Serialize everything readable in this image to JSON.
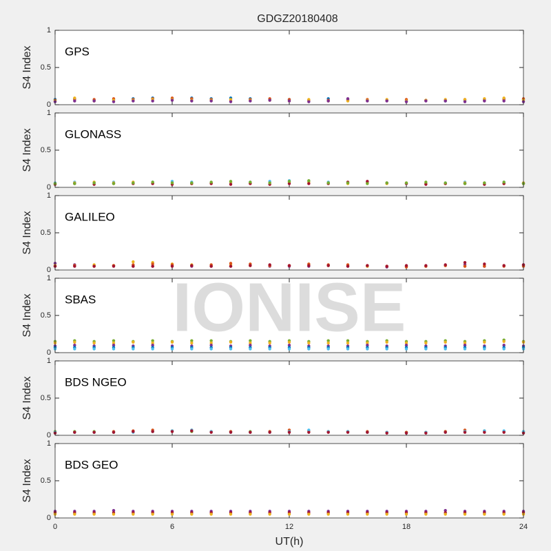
{
  "title": "GDGZ20180408",
  "x_label": "UT(h)",
  "watermark": "IONISE",
  "chart_data": [
    {
      "type": "scatter",
      "title": "GPS",
      "y_label": "S4 Index",
      "xlim": [
        0,
        24
      ],
      "xticks": [
        0,
        6,
        12,
        18,
        24
      ],
      "ylim": [
        0,
        1
      ],
      "yticks": [
        0,
        0.5,
        1
      ],
      "x": [
        0,
        1,
        2,
        3,
        4,
        5,
        6,
        7,
        8,
        9,
        10,
        11,
        12,
        13,
        14,
        15,
        16,
        17,
        18,
        19,
        20,
        21,
        22,
        23,
        24
      ],
      "series": [
        {
          "color": "#0072BD",
          "values": [
            0.07,
            0.08,
            0.06,
            0.07,
            0.08,
            0.09,
            0.08,
            0.09,
            0.08,
            0.09,
            0.08,
            0.07,
            0.07,
            0.06,
            0.08,
            0.07,
            0.06,
            0.06,
            0.05,
            0.06,
            0.05,
            0.06,
            0.07,
            0.08,
            0.07
          ]
        },
        {
          "color": "#D95319",
          "values": [
            0.06,
            0.07,
            0.07,
            0.08,
            0.07,
            0.08,
            0.09,
            0.08,
            0.07,
            0.06,
            0.07,
            0.08,
            0.07,
            0.06,
            0.06,
            0.06,
            0.07,
            0.06,
            0.07,
            0.06,
            0.06,
            0.07,
            0.06,
            0.07,
            0.08
          ]
        },
        {
          "color": "#EDB120",
          "values": [
            0.05,
            0.09,
            0.05,
            0.06,
            0.06,
            0.07,
            0.07,
            0.06,
            0.06,
            0.07,
            0.06,
            0.06,
            0.05,
            0.07,
            0.05,
            0.05,
            0.06,
            0.07,
            0.05,
            0.06,
            0.07,
            0.07,
            0.08,
            0.09,
            0.06
          ]
        },
        {
          "color": "#7E2F8E",
          "values": [
            0.04,
            0.05,
            0.05,
            0.04,
            0.05,
            0.05,
            0.06,
            0.05,
            0.05,
            0.04,
            0.05,
            0.06,
            0.05,
            0.04,
            0.05,
            0.08,
            0.05,
            0.05,
            0.04,
            0.05,
            0.05,
            0.04,
            0.05,
            0.05,
            0.04
          ]
        }
      ]
    },
    {
      "type": "scatter",
      "title": "GLONASS",
      "y_label": "S4 Index",
      "xlim": [
        0,
        24
      ],
      "xticks": [
        0,
        6,
        12,
        18,
        24
      ],
      "ylim": [
        0,
        1
      ],
      "yticks": [
        0,
        0.5,
        1
      ],
      "x": [
        0,
        1,
        2,
        3,
        4,
        5,
        6,
        7,
        8,
        9,
        10,
        11,
        12,
        13,
        14,
        15,
        16,
        17,
        18,
        19,
        20,
        21,
        22,
        23,
        24
      ],
      "series": [
        {
          "color": "#4DBEEE",
          "values": [
            0.06,
            0.07,
            0.06,
            0.07,
            0.06,
            0.07,
            0.08,
            0.07,
            0.06,
            0.06,
            0.07,
            0.08,
            0.09,
            0.08,
            0.07,
            0.06,
            0.07,
            0.06,
            0.05,
            0.05,
            0.06,
            0.07,
            0.06,
            0.07,
            0.06
          ]
        },
        {
          "color": "#EDB120",
          "values": [
            0.05,
            0.06,
            0.07,
            0.06,
            0.07,
            0.06,
            0.06,
            0.05,
            0.06,
            0.07,
            0.06,
            0.06,
            0.07,
            0.07,
            0.06,
            0.05,
            0.06,
            0.05,
            0.06,
            0.05,
            0.05,
            0.06,
            0.06,
            0.05,
            0.06
          ]
        },
        {
          "color": "#A2142F",
          "values": [
            0.04,
            0.05,
            0.04,
            0.05,
            0.05,
            0.05,
            0.04,
            0.05,
            0.05,
            0.04,
            0.05,
            0.04,
            0.05,
            0.05,
            0.05,
            0.07,
            0.08,
            0.06,
            0.05,
            0.04,
            0.05,
            0.05,
            0.04,
            0.05,
            0.05
          ]
        },
        {
          "color": "#77AC30",
          "values": [
            0.05,
            0.05,
            0.06,
            0.05,
            0.06,
            0.07,
            0.06,
            0.06,
            0.07,
            0.08,
            0.07,
            0.06,
            0.08,
            0.09,
            0.06,
            0.06,
            0.05,
            0.06,
            0.06,
            0.07,
            0.06,
            0.05,
            0.06,
            0.07,
            0.05
          ]
        }
      ]
    },
    {
      "type": "scatter",
      "title": "GALILEO",
      "y_label": "S4 Index",
      "xlim": [
        0,
        24
      ],
      "xticks": [
        0,
        6,
        12,
        18,
        24
      ],
      "ylim": [
        0,
        1
      ],
      "yticks": [
        0,
        0.5,
        1
      ],
      "x": [
        0,
        1,
        2,
        3,
        4,
        5,
        6,
        7,
        8,
        9,
        10,
        11,
        12,
        13,
        14,
        15,
        16,
        17,
        18,
        19,
        20,
        21,
        22,
        23,
        24
      ],
      "series": [
        {
          "color": "#7E2F8E",
          "values": [
            0.09,
            0.07,
            0.06,
            0.06,
            0.05,
            0.05,
            0.06,
            0.05,
            0.05,
            0.05,
            0.06,
            0.05,
            0.05,
            0.05,
            0.06,
            0.05,
            0.05,
            0.04,
            0.05,
            0.05,
            0.06,
            0.07,
            0.05,
            0.06,
            0.07
          ]
        },
        {
          "color": "#EDB120",
          "values": [
            0.06,
            0.06,
            0.07,
            0.06,
            0.11,
            0.1,
            0.08,
            0.07,
            0.06,
            0.07,
            0.06,
            0.06,
            0.06,
            0.07,
            0.06,
            0.06,
            0.05,
            0.05,
            0.05,
            0.05,
            0.06,
            0.05,
            0.06,
            0.06,
            0.06
          ]
        },
        {
          "color": "#D95319",
          "values": [
            0.05,
            0.06,
            0.05,
            0.06,
            0.07,
            0.08,
            0.07,
            0.06,
            0.07,
            0.09,
            0.08,
            0.06,
            0.06,
            0.08,
            0.07,
            0.07,
            0.06,
            0.05,
            0.04,
            0.05,
            0.06,
            0.05,
            0.05,
            0.05,
            0.05
          ]
        },
        {
          "color": "#A2142F",
          "values": [
            0.05,
            0.05,
            0.05,
            0.05,
            0.05,
            0.05,
            0.05,
            0.06,
            0.05,
            0.05,
            0.06,
            0.07,
            0.06,
            0.06,
            0.06,
            0.05,
            0.06,
            0.05,
            0.06,
            0.06,
            0.07,
            0.1,
            0.08,
            0.06,
            0.07
          ]
        }
      ]
    },
    {
      "type": "scatter",
      "title": "SBAS",
      "y_label": "S4 Index",
      "xlim": [
        0,
        24
      ],
      "xticks": [
        0,
        6,
        12,
        18,
        24
      ],
      "ylim": [
        0,
        1
      ],
      "yticks": [
        0,
        0.5,
        1
      ],
      "x": [
        0,
        1,
        2,
        3,
        4,
        5,
        6,
        7,
        8,
        9,
        10,
        11,
        12,
        13,
        14,
        15,
        16,
        17,
        18,
        19,
        20,
        21,
        22,
        23,
        24
      ],
      "series": [
        {
          "color": "#77AC30",
          "values": [
            0.15,
            0.16,
            0.15,
            0.16,
            0.15,
            0.16,
            0.15,
            0.16,
            0.16,
            0.15,
            0.16,
            0.15,
            0.16,
            0.15,
            0.16,
            0.16,
            0.15,
            0.16,
            0.15,
            0.15,
            0.16,
            0.15,
            0.16,
            0.17,
            0.15
          ]
        },
        {
          "color": "#EDB120",
          "values": [
            0.13,
            0.14,
            0.13,
            0.13,
            0.14,
            0.13,
            0.14,
            0.13,
            0.13,
            0.14,
            0.13,
            0.13,
            0.14,
            0.13,
            0.13,
            0.13,
            0.13,
            0.14,
            0.13,
            0.13,
            0.14,
            0.13,
            0.14,
            0.15,
            0.14
          ]
        },
        {
          "color": "#7E2F8E",
          "values": [
            0.09,
            0.1,
            0.09,
            0.1,
            0.09,
            0.1,
            0.09,
            0.09,
            0.1,
            0.09,
            0.1,
            0.09,
            0.1,
            0.09,
            0.09,
            0.09,
            0.1,
            0.09,
            0.1,
            0.09,
            0.09,
            0.1,
            0.09,
            0.1,
            0.09
          ]
        },
        {
          "color": "#0072BD",
          "values": [
            0.07,
            0.07,
            0.07,
            0.07,
            0.07,
            0.07,
            0.07,
            0.07,
            0.07,
            0.07,
            0.07,
            0.07,
            0.07,
            0.07,
            0.07,
            0.07,
            0.07,
            0.07,
            0.07,
            0.07,
            0.07,
            0.07,
            0.07,
            0.07,
            0.07
          ]
        },
        {
          "color": "#4DBEEE",
          "values": [
            0.05,
            0.05,
            0.05,
            0.05,
            0.05,
            0.05,
            0.05,
            0.05,
            0.05,
            0.05,
            0.05,
            0.05,
            0.05,
            0.05,
            0.05,
            0.05,
            0.05,
            0.05,
            0.05,
            0.05,
            0.05,
            0.05,
            0.05,
            0.05,
            0.05
          ]
        }
      ]
    },
    {
      "type": "scatter",
      "title": "BDS NGEO",
      "y_label": "S4 Index",
      "xlim": [
        0,
        24
      ],
      "xticks": [
        0,
        6,
        12,
        18,
        24
      ],
      "ylim": [
        0,
        1
      ],
      "yticks": [
        0,
        0.5,
        1
      ],
      "x": [
        0,
        1,
        2,
        3,
        4,
        5,
        6,
        7,
        8,
        9,
        10,
        11,
        12,
        13,
        14,
        15,
        16,
        17,
        18,
        19,
        20,
        21,
        22,
        23,
        24
      ],
      "series": [
        {
          "color": "#77AC30",
          "values": [
            0.05,
            0.05,
            0.05,
            0.04,
            0.05,
            0.05,
            0.06,
            0.05,
            0.05,
            0.05,
            0.05,
            0.05,
            0.05,
            0.06,
            0.05,
            0.05,
            0.04,
            0.04,
            0.04,
            0.04,
            0.05,
            0.05,
            0.06,
            0.05,
            0.05
          ]
        },
        {
          "color": "#D95319",
          "values": [
            0.04,
            0.04,
            0.04,
            0.05,
            0.06,
            0.07,
            0.06,
            0.07,
            0.05,
            0.05,
            0.04,
            0.05,
            0.07,
            0.06,
            0.05,
            0.05,
            0.05,
            0.04,
            0.04,
            0.04,
            0.05,
            0.07,
            0.06,
            0.05,
            0.04
          ]
        },
        {
          "color": "#4DBEEE",
          "values": [
            0.04,
            0.04,
            0.04,
            0.04,
            0.04,
            0.05,
            0.06,
            0.07,
            0.05,
            0.04,
            0.04,
            0.04,
            0.05,
            0.07,
            0.05,
            0.05,
            0.04,
            0.04,
            0.03,
            0.04,
            0.04,
            0.05,
            0.06,
            0.06,
            0.05
          ]
        },
        {
          "color": "#A2142F",
          "values": [
            0.03,
            0.04,
            0.04,
            0.04,
            0.05,
            0.05,
            0.05,
            0.06,
            0.04,
            0.04,
            0.04,
            0.04,
            0.04,
            0.04,
            0.04,
            0.04,
            0.04,
            0.03,
            0.03,
            0.03,
            0.04,
            0.04,
            0.04,
            0.04,
            0.03
          ]
        }
      ]
    },
    {
      "type": "scatter",
      "title": "BDS GEO",
      "y_label": "S4 Index",
      "xlim": [
        0,
        24
      ],
      "xticks": [
        0,
        6,
        12,
        18,
        24
      ],
      "ylim": [
        0,
        1
      ],
      "yticks": [
        0,
        0.5,
        1
      ],
      "x": [
        0,
        1,
        2,
        3,
        4,
        5,
        6,
        7,
        8,
        9,
        10,
        11,
        12,
        13,
        14,
        15,
        16,
        17,
        18,
        19,
        20,
        21,
        22,
        23,
        24
      ],
      "series": [
        {
          "color": "#7E2F8E",
          "values": [
            0.09,
            0.09,
            0.09,
            0.1,
            0.09,
            0.09,
            0.09,
            0.09,
            0.09,
            0.09,
            0.09,
            0.09,
            0.09,
            0.09,
            0.09,
            0.09,
            0.09,
            0.09,
            0.09,
            0.09,
            0.1,
            0.09,
            0.09,
            0.09,
            0.09
          ]
        },
        {
          "color": "#A2142F",
          "values": [
            0.07,
            0.07,
            0.07,
            0.07,
            0.07,
            0.07,
            0.07,
            0.07,
            0.07,
            0.07,
            0.07,
            0.07,
            0.07,
            0.07,
            0.07,
            0.07,
            0.07,
            0.07,
            0.07,
            0.07,
            0.07,
            0.07,
            0.07,
            0.07,
            0.07
          ]
        },
        {
          "color": "#EDB120",
          "values": [
            0.05,
            0.05,
            0.05,
            0.05,
            0.05,
            0.05,
            0.05,
            0.05,
            0.05,
            0.05,
            0.05,
            0.05,
            0.05,
            0.05,
            0.05,
            0.05,
            0.05,
            0.05,
            0.05,
            0.05,
            0.05,
            0.05,
            0.05,
            0.05,
            0.05
          ]
        }
      ]
    }
  ]
}
